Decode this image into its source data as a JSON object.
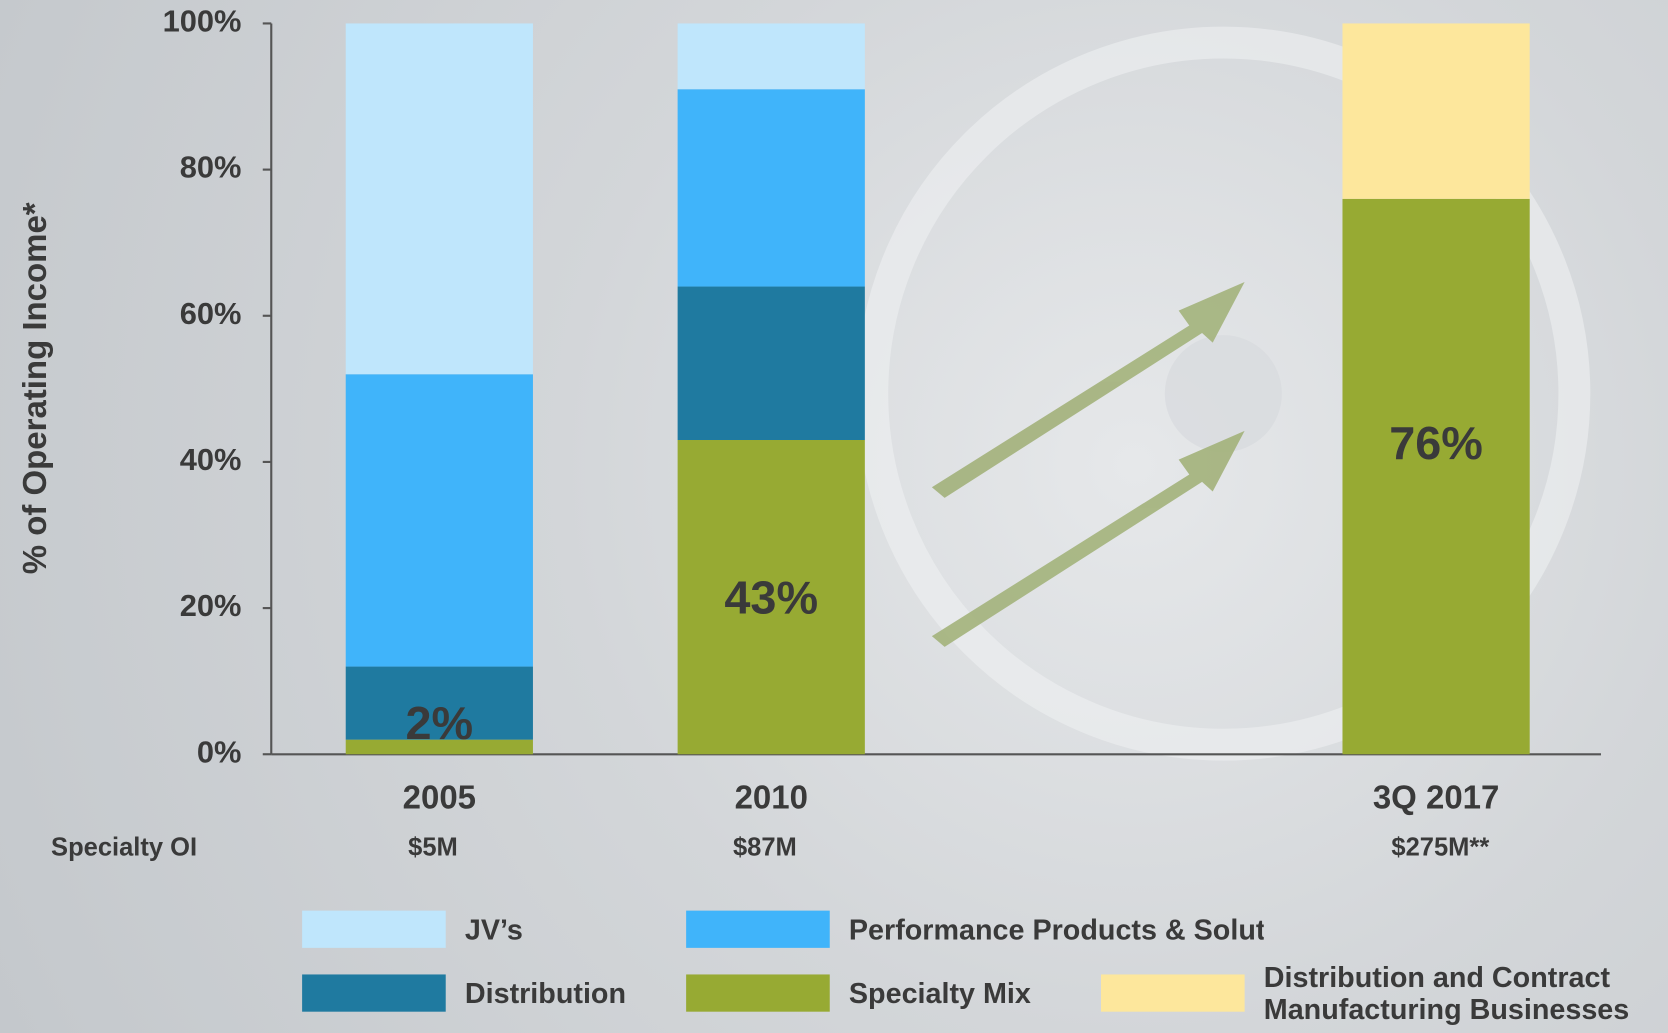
{
  "chart_data": {
    "type": "stacked-bar",
    "y_label": "% of Operating Income*",
    "categories": [
      "2005",
      "2010",
      "3Q 2017"
    ],
    "ylim": [
      0,
      100
    ],
    "yticks": [
      {
        "value": 0,
        "label": "0%"
      },
      {
        "value": 20,
        "label": "20%"
      },
      {
        "value": 40,
        "label": "40%"
      },
      {
        "value": 60,
        "label": "60%"
      },
      {
        "value": 80,
        "label": "80%"
      },
      {
        "value": 100,
        "label": "100%"
      }
    ],
    "series": [
      {
        "name": "Specialty Mix",
        "color": "#97aa33",
        "values": [
          2,
          43,
          76
        ],
        "value_labels": [
          "2%",
          "43%",
          "76%"
        ]
      },
      {
        "name": "Distribution",
        "color": "#1f7aa0",
        "values": [
          10,
          21,
          null
        ]
      },
      {
        "name": "Performance Products & Solutions",
        "color": "#40b4fa",
        "values": [
          40,
          27,
          null
        ]
      },
      {
        "name": "JV’s",
        "color": "#bfe6fc",
        "values": [
          48,
          9,
          null
        ]
      },
      {
        "name": "Distribution and Contract Manufacturing Businesses",
        "color": "#fde79c",
        "values": [
          null,
          null,
          24
        ]
      }
    ],
    "specialty_oi": {
      "label": "Specialty OI",
      "values": [
        "$5M",
        "$87M",
        "$275M**"
      ]
    }
  }
}
